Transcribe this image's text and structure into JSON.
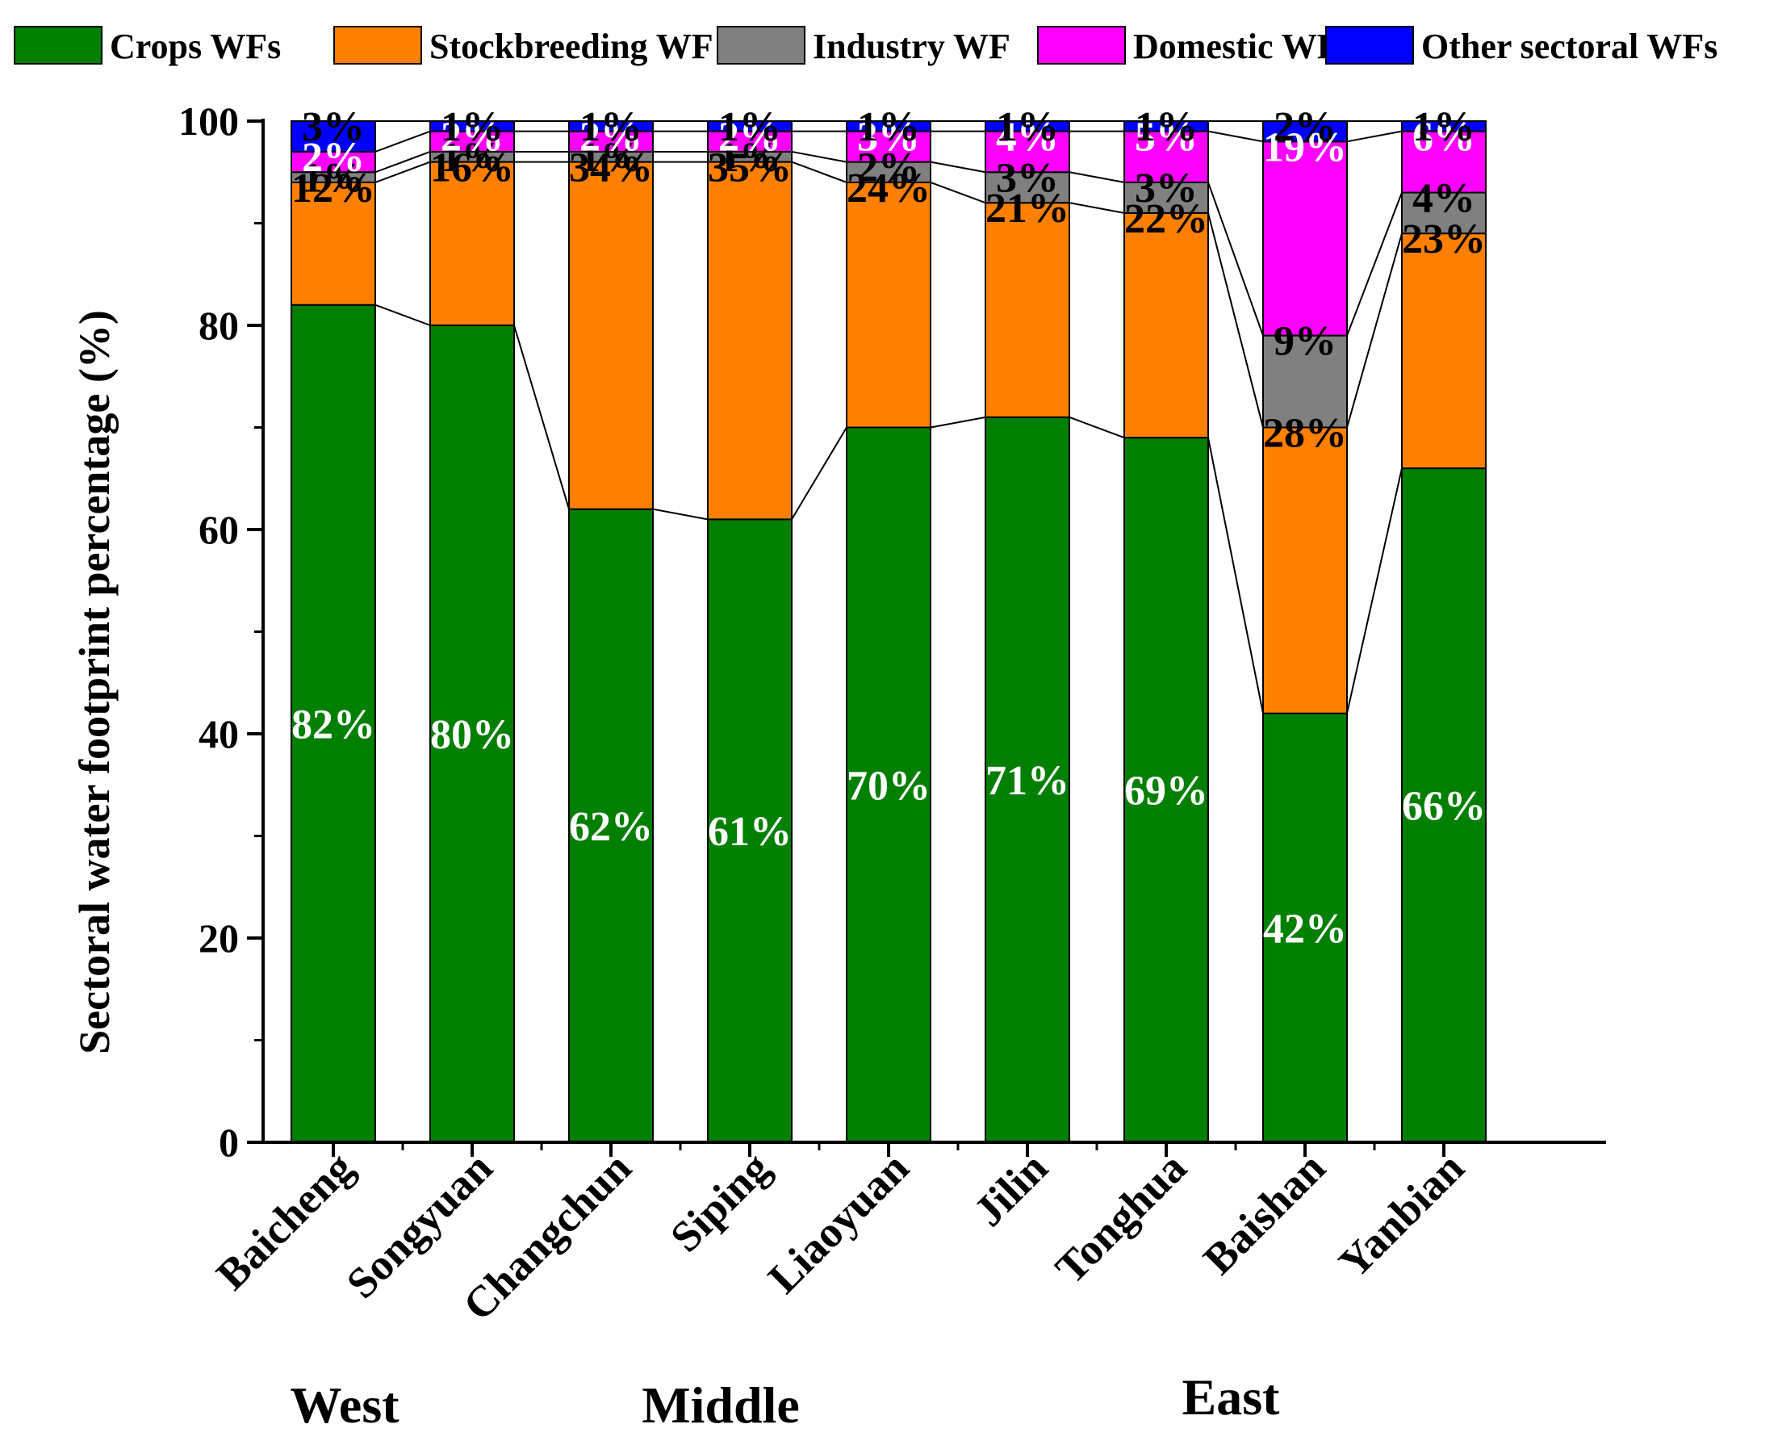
{
  "chart_data": {
    "type": "bar",
    "stacked": true,
    "title": "",
    "xlabel": "",
    "ylabel": "Sectoral water footprint percentage (%)",
    "ylim": [
      0,
      100
    ],
    "yticks": [
      0,
      20,
      40,
      60,
      80,
      100
    ],
    "categories": [
      "Baicheng",
      "Songyuan",
      "Changchun",
      "Siping",
      "Liaoyuan",
      "Jilin",
      "Tonghua",
      "Baishan",
      "Yanbian"
    ],
    "regions": [
      {
        "name": "West",
        "from": 0,
        "to": 1
      },
      {
        "name": "Middle",
        "from": 2,
        "to": 5
      },
      {
        "name": "East",
        "from": 6,
        "to": 8
      }
    ],
    "series": [
      {
        "name": "Crops WFs",
        "color": "#007f00",
        "label_color": "#ffffff",
        "values": [
          82,
          80,
          62,
          61,
          70,
          71,
          69,
          42,
          66
        ]
      },
      {
        "name": "Stockbreeding WF",
        "color": "#ff8000",
        "label_color": "#000000",
        "values": [
          12,
          16,
          34,
          35,
          24,
          21,
          22,
          28,
          23
        ]
      },
      {
        "name": "Industry WF",
        "color": "#808080",
        "label_color": "#000000",
        "values": [
          1,
          1,
          1,
          1,
          2,
          3,
          3,
          9,
          4
        ]
      },
      {
        "name": "Domestic WF",
        "color": "#ff00ff",
        "label_color": "#ffffff",
        "values": [
          2,
          2,
          2,
          2,
          3,
          4,
          5,
          19,
          6
        ]
      },
      {
        "name": "Other sectoral WFs",
        "color": "#0000ff",
        "label_color": "#000000",
        "values": [
          3,
          1,
          1,
          1,
          1,
          1,
          1,
          2,
          1
        ]
      }
    ]
  }
}
